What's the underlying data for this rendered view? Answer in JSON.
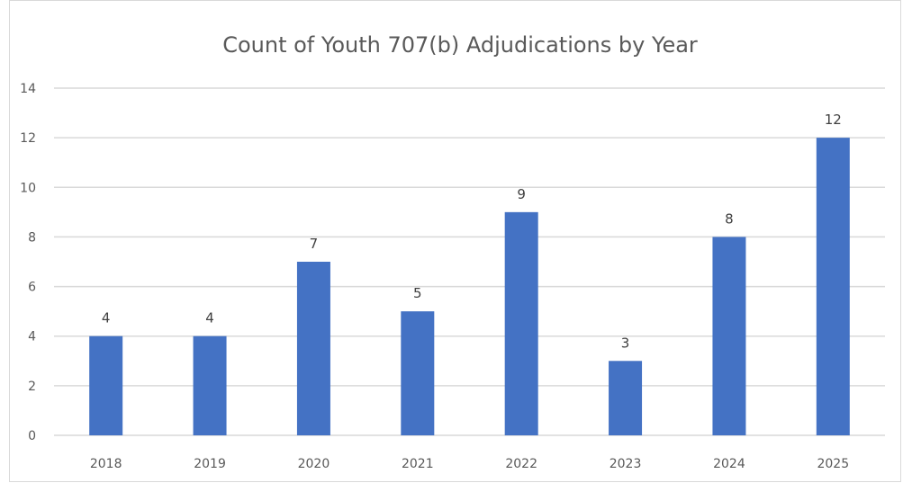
{
  "chart_data": {
    "type": "bar",
    "title": "Count of Youth 707(b) Adjudications by Year",
    "categories": [
      "2018",
      "2019",
      "2020",
      "2021",
      "2022",
      "2023",
      "2024",
      "2025"
    ],
    "values": [
      4,
      4,
      7,
      5,
      9,
      3,
      8,
      12
    ],
    "ylim": [
      0,
      14
    ],
    "yticks": [
      0,
      2,
      4,
      6,
      8,
      10,
      12,
      14
    ],
    "grid": true,
    "data_labels": true,
    "legend": "none",
    "bar_color": "#4472C4",
    "grid_color": "#d9d9d9"
  }
}
